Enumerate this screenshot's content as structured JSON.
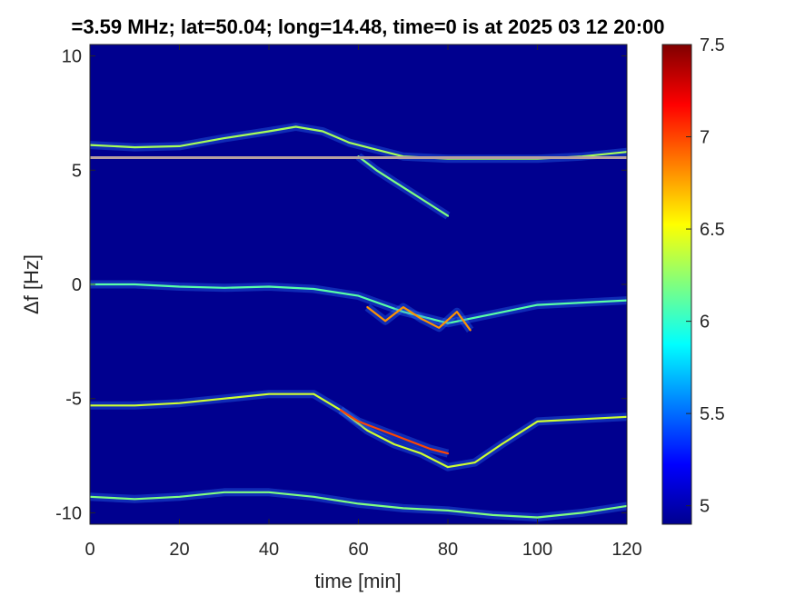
{
  "chart_data": {
    "type": "heatmap",
    "title": "=3.59 MHz;  lat=50.04; long=14.48, time=0 is at 2025 03 12 20:00",
    "xlabel": "time [min]",
    "ylabel": "Δf [Hz]",
    "xlim": [
      0,
      120
    ],
    "ylim": [
      -10.5,
      10.5
    ],
    "x_ticks": [
      0,
      20,
      40,
      60,
      80,
      100,
      120
    ],
    "y_ticks": [
      -10,
      -5,
      0,
      5,
      10
    ],
    "colorbar": {
      "range": [
        4.9,
        7.5
      ],
      "ticks": [
        5,
        5.5,
        6,
        6.5,
        7,
        7.5
      ],
      "colormap": "jet"
    },
    "grid": false,
    "background_color": "#00008f",
    "traces": [
      {
        "x": [
          0,
          10,
          20,
          30,
          40,
          46,
          52,
          58,
          64,
          70,
          80,
          90,
          100,
          110,
          120
        ],
        "y": [
          6.1,
          6.0,
          6.05,
          6.4,
          6.7,
          6.9,
          6.7,
          6.2,
          5.9,
          5.6,
          5.5,
          5.5,
          5.5,
          5.6,
          5.8
        ],
        "level": 6.3
      },
      {
        "x": [
          60,
          64,
          68,
          72,
          76,
          80
        ],
        "y": [
          5.6,
          5.0,
          4.5,
          4.0,
          3.5,
          3.0
        ],
        "level": 6.2
      },
      {
        "x": [
          0,
          10,
          20,
          30,
          40,
          50,
          60,
          70,
          80,
          90,
          100,
          110,
          120
        ],
        "y": [
          0.0,
          0.0,
          -0.1,
          -0.15,
          -0.1,
          -0.2,
          -0.5,
          -1.2,
          -1.7,
          -1.3,
          -0.9,
          -0.8,
          -0.7
        ],
        "level": 6.1
      },
      {
        "x": [
          62,
          66,
          70,
          74,
          78,
          82,
          85
        ],
        "y": [
          -1.0,
          -1.6,
          -1.0,
          -1.5,
          -1.9,
          -1.2,
          -2.0
        ],
        "level": 6.8
      },
      {
        "x": [
          0,
          10,
          20,
          30,
          40,
          50,
          56,
          62,
          68,
          74,
          80,
          86,
          92,
          100,
          110,
          120
        ],
        "y": [
          -5.3,
          -5.3,
          -5.2,
          -5.0,
          -4.8,
          -4.8,
          -5.5,
          -6.4,
          -7.0,
          -7.4,
          -8.0,
          -7.8,
          -7.0,
          -6.0,
          -5.9,
          -5.8
        ],
        "level": 6.4
      },
      {
        "x": [
          56,
          60,
          64,
          68,
          72,
          76,
          80
        ],
        "y": [
          -5.5,
          -6.0,
          -6.3,
          -6.6,
          -6.9,
          -7.2,
          -7.4
        ],
        "level": 7.0
      },
      {
        "x": [
          0,
          10,
          20,
          30,
          40,
          50,
          60,
          70,
          80,
          90,
          100,
          110,
          120
        ],
        "y": [
          -9.3,
          -9.4,
          -9.3,
          -9.1,
          -9.1,
          -9.3,
          -9.6,
          -9.8,
          -9.9,
          -10.1,
          -10.2,
          -10.0,
          -9.7
        ],
        "level": 6.2
      }
    ],
    "constant_lines": [
      {
        "y": 5.55,
        "level": 6.6
      }
    ]
  }
}
